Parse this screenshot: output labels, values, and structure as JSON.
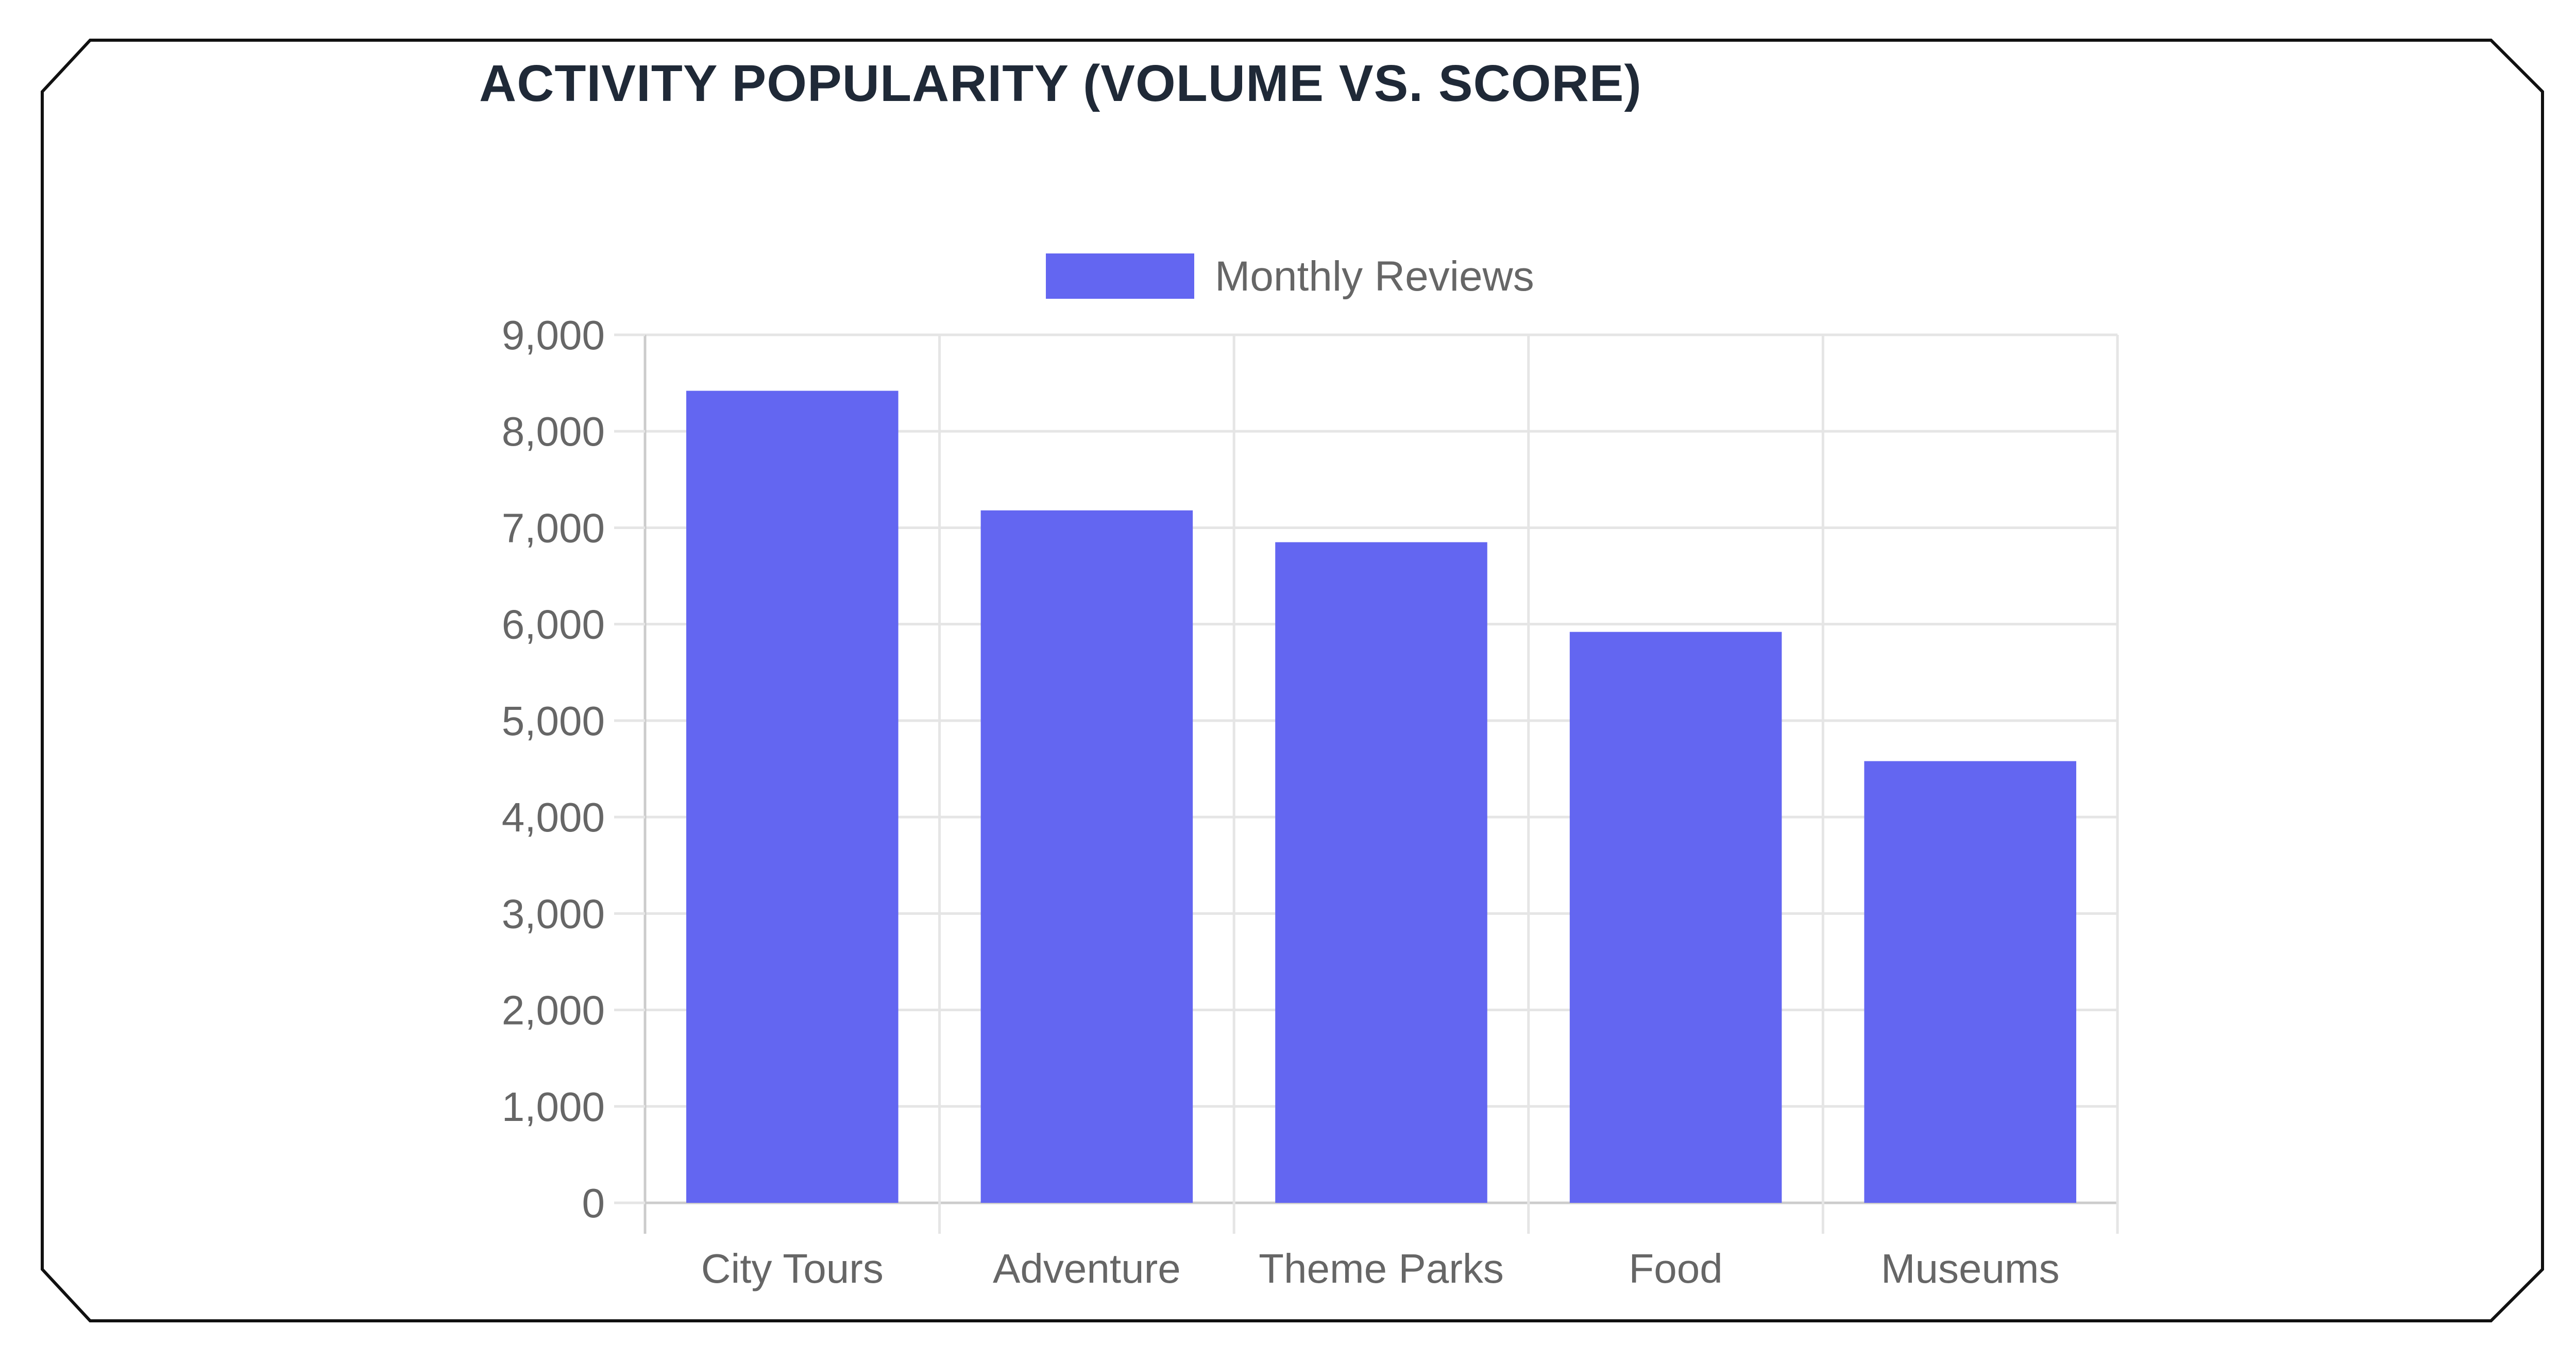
{
  "chart_data": {
    "type": "bar",
    "title": "ACTIVITY POPULARITY (VOLUME VS. SCORE)",
    "categories": [
      "City Tours",
      "Adventure",
      "Theme Parks",
      "Food",
      "Museums"
    ],
    "series": [
      {
        "name": "Monthly Reviews",
        "values": [
          8420,
          7180,
          6850,
          5920,
          4580
        ],
        "color": "#6366f1"
      }
    ],
    "y_ticks": [
      "0",
      "1,000",
      "2,000",
      "3,000",
      "4,000",
      "5,000",
      "6,000",
      "7,000",
      "8,000",
      "9,000"
    ],
    "ylim": [
      0,
      9000
    ],
    "grid": true,
    "legend_position": "top-center",
    "xlabel": "",
    "ylabel": ""
  }
}
